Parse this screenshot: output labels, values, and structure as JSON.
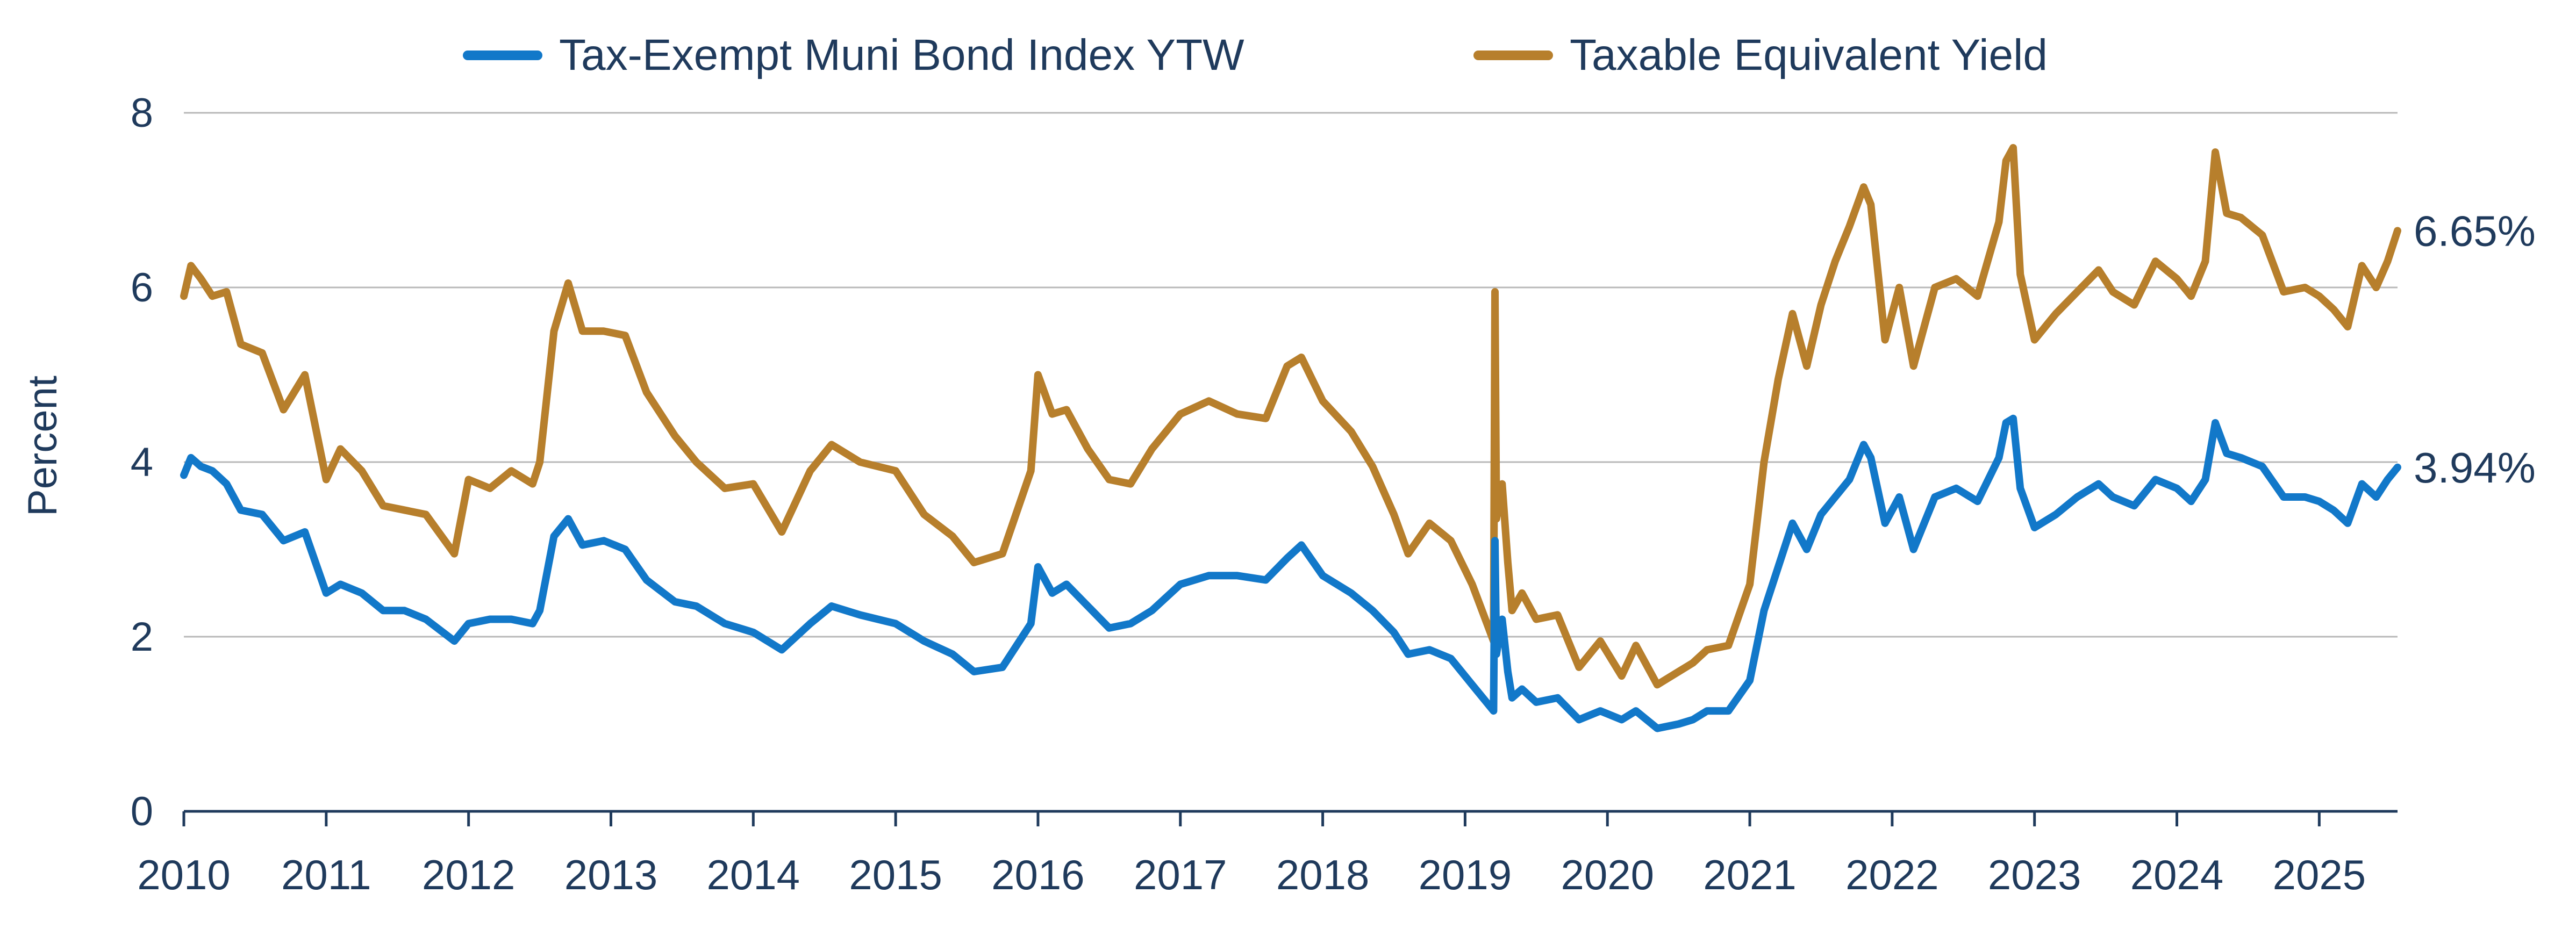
{
  "chart_data": {
    "type": "line",
    "title": "",
    "xlabel": "",
    "ylabel": "Percent",
    "ylim": [
      0,
      8
    ],
    "xlim": [
      2010.0,
      2025.55
    ],
    "y_ticks": [
      "0",
      "2",
      "4",
      "6",
      "8"
    ],
    "x_ticks": [
      "2010",
      "2011",
      "2012",
      "2013",
      "2014",
      "2015",
      "2016",
      "2017",
      "2018",
      "2019",
      "2020",
      "2021",
      "2022",
      "2023",
      "2024",
      "2025"
    ],
    "grid": "horizontal",
    "legend_position": "top",
    "series": [
      {
        "name": "Tax-Exempt Muni Bond Index YTW",
        "color": "#1278c9",
        "end_label": "3.94%",
        "x": [
          2010.0,
          2010.05,
          2010.12,
          2010.2,
          2010.3,
          2010.4,
          2010.55,
          2010.7,
          2010.85,
          2011.0,
          2011.1,
          2011.25,
          2011.4,
          2011.55,
          2011.7,
          2011.9,
          2012.0,
          2012.15,
          2012.3,
          2012.45,
          2012.5,
          2012.6,
          2012.7,
          2012.8,
          2012.95,
          2013.1,
          2013.25,
          2013.45,
          2013.6,
          2013.8,
          2014.0,
          2014.2,
          2014.4,
          2014.55,
          2014.75,
          2015.0,
          2015.2,
          2015.4,
          2015.55,
          2015.75,
          2015.95,
          2016.0,
          2016.1,
          2016.2,
          2016.35,
          2016.5,
          2016.65,
          2016.8,
          2017.0,
          2017.2,
          2017.4,
          2017.6,
          2017.75,
          2017.85,
          2018.0,
          2018.2,
          2018.35,
          2018.5,
          2018.6,
          2018.75,
          2018.9,
          2019.05,
          2019.2,
          2019.21,
          2019.22,
          2019.26,
          2019.3,
          2019.33,
          2019.4,
          2019.5,
          2019.65,
          2019.8,
          2019.95,
          2020.1,
          2020.2,
          2020.35,
          2020.5,
          2020.6,
          2020.7,
          2020.85,
          2021.0,
          2021.1,
          2021.2,
          2021.3,
          2021.4,
          2021.5,
          2021.6,
          2021.7,
          2021.8,
          2021.85,
          2021.95,
          2022.05,
          2022.15,
          2022.3,
          2022.45,
          2022.6,
          2022.75,
          2022.8,
          2022.85,
          2022.9,
          2023.0,
          2023.15,
          2023.3,
          2023.45,
          2023.55,
          2023.7,
          2023.85,
          2024.0,
          2024.1,
          2024.2,
          2024.27,
          2024.35,
          2024.45,
          2024.6,
          2024.75,
          2024.9,
          2025.0,
          2025.1,
          2025.2,
          2025.3,
          2025.4,
          2025.48,
          2025.55
        ],
        "values": [
          3.85,
          4.05,
          3.95,
          3.9,
          3.75,
          3.45,
          3.4,
          3.1,
          3.2,
          2.5,
          2.6,
          2.5,
          2.3,
          2.3,
          2.2,
          1.95,
          2.15,
          2.2,
          2.2,
          2.15,
          2.3,
          3.15,
          3.35,
          3.05,
          3.1,
          3.0,
          2.65,
          2.4,
          2.35,
          2.15,
          2.05,
          1.85,
          2.15,
          2.35,
          2.25,
          2.15,
          1.95,
          1.8,
          1.6,
          1.65,
          2.15,
          2.8,
          2.5,
          2.6,
          2.35,
          2.1,
          2.15,
          2.3,
          2.6,
          2.7,
          2.7,
          2.65,
          2.9,
          3.05,
          2.7,
          2.5,
          2.3,
          2.05,
          1.8,
          1.85,
          1.75,
          1.45,
          1.15,
          3.1,
          1.8,
          2.2,
          1.6,
          1.3,
          1.4,
          1.25,
          1.3,
          1.05,
          1.15,
          1.05,
          1.15,
          0.95,
          1.0,
          1.05,
          1.15,
          1.15,
          1.5,
          2.3,
          2.8,
          3.3,
          3.0,
          3.4,
          3.6,
          3.8,
          4.2,
          4.05,
          3.3,
          3.6,
          3.0,
          3.6,
          3.7,
          3.55,
          4.05,
          4.45,
          4.5,
          3.7,
          3.25,
          3.4,
          3.6,
          3.75,
          3.6,
          3.5,
          3.8,
          3.7,
          3.55,
          3.8,
          4.45,
          4.1,
          4.05,
          3.95,
          3.6,
          3.6,
          3.55,
          3.45,
          3.3,
          3.75,
          3.6,
          3.8,
          3.94
        ]
      },
      {
        "name": "Taxable Equivalent Yield",
        "color": "#b77f2c",
        "end_label": "6.65%",
        "x": [
          2010.0,
          2010.05,
          2010.12,
          2010.2,
          2010.3,
          2010.4,
          2010.55,
          2010.7,
          2010.85,
          2011.0,
          2011.1,
          2011.25,
          2011.4,
          2011.55,
          2011.7,
          2011.9,
          2012.0,
          2012.15,
          2012.3,
          2012.45,
          2012.5,
          2012.6,
          2012.7,
          2012.8,
          2012.95,
          2013.1,
          2013.25,
          2013.45,
          2013.6,
          2013.8,
          2014.0,
          2014.2,
          2014.4,
          2014.55,
          2014.75,
          2015.0,
          2015.2,
          2015.4,
          2015.55,
          2015.75,
          2015.95,
          2016.0,
          2016.1,
          2016.2,
          2016.35,
          2016.5,
          2016.65,
          2016.8,
          2017.0,
          2017.2,
          2017.4,
          2017.6,
          2017.75,
          2017.85,
          2018.0,
          2018.2,
          2018.35,
          2018.5,
          2018.6,
          2018.75,
          2018.9,
          2019.05,
          2019.2,
          2019.21,
          2019.22,
          2019.26,
          2019.3,
          2019.33,
          2019.4,
          2019.5,
          2019.65,
          2019.8,
          2019.95,
          2020.1,
          2020.2,
          2020.35,
          2020.5,
          2020.6,
          2020.7,
          2020.85,
          2021.0,
          2021.1,
          2021.2,
          2021.3,
          2021.4,
          2021.5,
          2021.6,
          2021.7,
          2021.8,
          2021.85,
          2021.95,
          2022.05,
          2022.15,
          2022.3,
          2022.45,
          2022.6,
          2022.75,
          2022.8,
          2022.85,
          2022.9,
          2023.0,
          2023.15,
          2023.3,
          2023.45,
          2023.55,
          2023.7,
          2023.85,
          2024.0,
          2024.1,
          2024.2,
          2024.27,
          2024.35,
          2024.45,
          2024.6,
          2024.75,
          2024.9,
          2025.0,
          2025.1,
          2025.2,
          2025.3,
          2025.4,
          2025.48,
          2025.55
        ],
        "values": [
          5.9,
          6.25,
          6.1,
          5.9,
          5.95,
          5.35,
          5.25,
          4.6,
          5.0,
          3.8,
          4.15,
          3.9,
          3.5,
          3.45,
          3.4,
          2.95,
          3.8,
          3.7,
          3.9,
          3.75,
          4.0,
          5.5,
          6.05,
          5.5,
          5.5,
          5.45,
          4.8,
          4.3,
          4.0,
          3.7,
          3.75,
          3.2,
          3.9,
          4.2,
          4.0,
          3.9,
          3.4,
          3.15,
          2.85,
          2.95,
          3.9,
          5.0,
          4.55,
          4.6,
          4.15,
          3.8,
          3.75,
          4.15,
          4.55,
          4.7,
          4.55,
          4.5,
          5.1,
          5.2,
          4.7,
          4.35,
          3.95,
          3.4,
          2.95,
          3.3,
          3.1,
          2.6,
          1.95,
          5.95,
          3.35,
          3.75,
          2.85,
          2.3,
          2.5,
          2.2,
          2.25,
          1.65,
          1.95,
          1.55,
          1.9,
          1.45,
          1.6,
          1.7,
          1.85,
          1.9,
          2.6,
          4.0,
          4.95,
          5.7,
          5.1,
          5.8,
          6.3,
          6.7,
          7.15,
          6.95,
          5.4,
          6.0,
          5.1,
          6.0,
          6.1,
          5.9,
          6.75,
          7.45,
          7.6,
          6.15,
          5.4,
          5.7,
          5.95,
          6.2,
          5.95,
          5.8,
          6.3,
          6.1,
          5.9,
          6.3,
          7.55,
          6.85,
          6.8,
          6.6,
          5.95,
          6.0,
          5.9,
          5.75,
          5.55,
          6.25,
          6.0,
          6.3,
          6.65
        ]
      }
    ]
  }
}
